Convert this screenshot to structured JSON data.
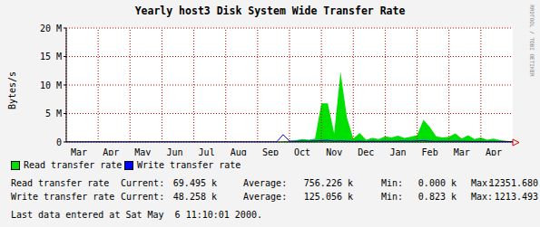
{
  "chart_data": {
    "type": "area",
    "title": "Yearly host3 Disk System Wide Transfer Rate",
    "y_label": "Bytes/s",
    "watermark": "RRDTOOL / TOBI OETIKER",
    "footer": "Last data entered at Sat May  6 11:10:01 2000.",
    "categories": [
      null,
      null,
      "Mar",
      null,
      null,
      null,
      null,
      "Apr",
      null,
      null,
      null,
      null,
      "May",
      null,
      null,
      null,
      null,
      "Jun",
      null,
      null,
      null,
      null,
      "Jul",
      null,
      null,
      null,
      null,
      "Aug",
      null,
      null,
      null,
      null,
      "Sep",
      null,
      null,
      null,
      null,
      "Oct",
      null,
      null,
      null,
      null,
      "Nov",
      null,
      null,
      null,
      null,
      "Dec",
      null,
      null,
      null,
      null,
      "Jan",
      null,
      null,
      null,
      null,
      "Feb",
      null,
      null,
      null,
      null,
      "Mar",
      null,
      null,
      null,
      null,
      "Apr",
      null,
      null,
      null
    ],
    "ylim": [
      0,
      20000000
    ],
    "yticks": [
      0,
      {
        "value": 5000000,
        "label": "5 M"
      },
      {
        "value": 10000000,
        "label": "10 M"
      },
      {
        "value": 15000000,
        "label": "15 M"
      },
      {
        "value": 20000000,
        "label": "20 M"
      }
    ],
    "grid": true,
    "legend": "bottom",
    "stats_labels": [
      "Current:",
      "Average:",
      "Min:",
      "Max:"
    ],
    "series": [
      {
        "name": "Read transfer rate",
        "type": "area",
        "color": "#00e000",
        "stats": [
          "69.495 k",
          "756.226 k",
          "0.000 k",
          "12351.680"
        ],
        "values": [
          0,
          0,
          0,
          0,
          0,
          0,
          0,
          0,
          0,
          0,
          0,
          0,
          0,
          0,
          0,
          0,
          0,
          0,
          0,
          0,
          0,
          0,
          0,
          0,
          0,
          0,
          0,
          0,
          0,
          0,
          0,
          0,
          0,
          0,
          100000,
          200000,
          300000,
          500000,
          400000,
          600000,
          6800000,
          6800000,
          1500000,
          12300000,
          4300000,
          600000,
          1600000,
          400000,
          700000,
          500000,
          1000000,
          800000,
          1100000,
          700000,
          900000,
          1200000,
          3900000,
          2600000,
          1000000,
          800000,
          900000,
          1500000,
          600000,
          1200000,
          500000,
          800000,
          400000,
          600000,
          300000,
          200000,
          100000
        ]
      },
      {
        "name": "Write transfer rate",
        "type": "line",
        "color": "#0000ff",
        "stats": [
          "48.258 k",
          "125.056 k",
          "0.823 k",
          "1213.493"
        ],
        "values": [
          20000,
          20000,
          20000,
          20000,
          20000,
          20000,
          20000,
          20000,
          20000,
          20000,
          20000,
          20000,
          20000,
          20000,
          20000,
          20000,
          20000,
          20000,
          20000,
          20000,
          20000,
          20000,
          20000,
          20000,
          20000,
          20000,
          20000,
          20000,
          20000,
          20000,
          20000,
          20000,
          20000,
          20000,
          1300000,
          150000,
          120000,
          180000,
          150000,
          200000,
          250000,
          300000,
          150000,
          200000,
          150000,
          120000,
          150000,
          100000,
          150000,
          120000,
          150000,
          130000,
          150000,
          180000,
          150000,
          200000,
          250000,
          150000,
          120000,
          150000,
          130000,
          150000,
          140000,
          120000,
          100000,
          120000,
          100000,
          110000,
          90000,
          80000,
          60000
        ]
      }
    ]
  }
}
